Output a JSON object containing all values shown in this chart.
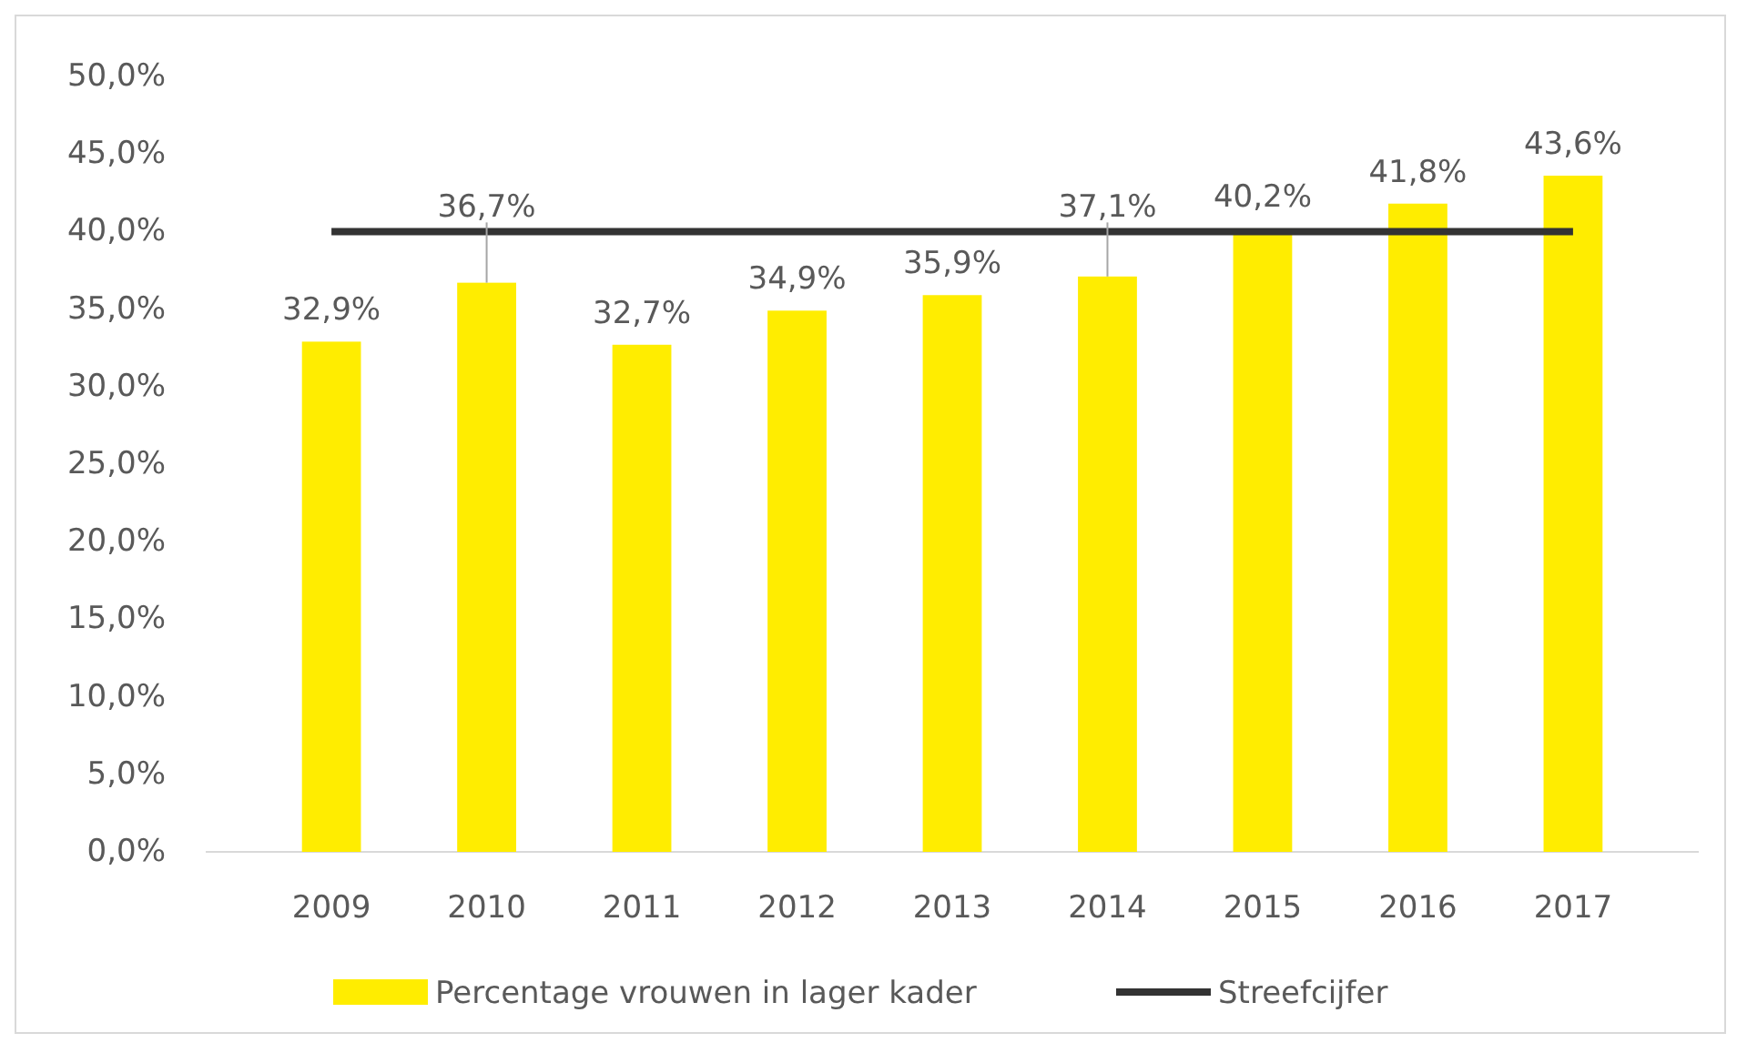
{
  "chart_data": {
    "type": "bar",
    "categories": [
      "2009",
      "2010",
      "2011",
      "2012",
      "2013",
      "2014",
      "2015",
      "2016",
      "2017"
    ],
    "series": [
      {
        "name": "Percentage vrouwen in lager kader",
        "type": "bar",
        "color": "#ffed00",
        "values": [
          32.9,
          36.7,
          32.7,
          34.9,
          35.9,
          37.1,
          40.2,
          41.8,
          43.6
        ],
        "value_labels": [
          "32,9%",
          "36,7%",
          "32,7%",
          "34,9%",
          "35,9%",
          "37,1%",
          "40,2%",
          "41,8%",
          "43,6%"
        ]
      },
      {
        "name": "Streefcijfer",
        "type": "line",
        "color": "#333333",
        "values": [
          40,
          40,
          40,
          40,
          40,
          40,
          40,
          40,
          40
        ]
      }
    ],
    "ylim": [
      0,
      50
    ],
    "yticks": [
      {
        "value": 0,
        "label": "0,0%"
      },
      {
        "value": 5,
        "label": "5,0%"
      },
      {
        "value": 10,
        "label": "10,0%"
      },
      {
        "value": 15,
        "label": "15,0%"
      },
      {
        "value": 20,
        "label": "20,0%"
      },
      {
        "value": 25,
        "label": "25,0%"
      },
      {
        "value": 30,
        "label": "30,0%"
      },
      {
        "value": 35,
        "label": "35,0%"
      },
      {
        "value": 40,
        "label": "40,0%"
      },
      {
        "value": 45,
        "label": "45,0%"
      },
      {
        "value": 50,
        "label": "50,0%"
      }
    ],
    "grid": false,
    "legend": "bottom",
    "marker": "none"
  }
}
